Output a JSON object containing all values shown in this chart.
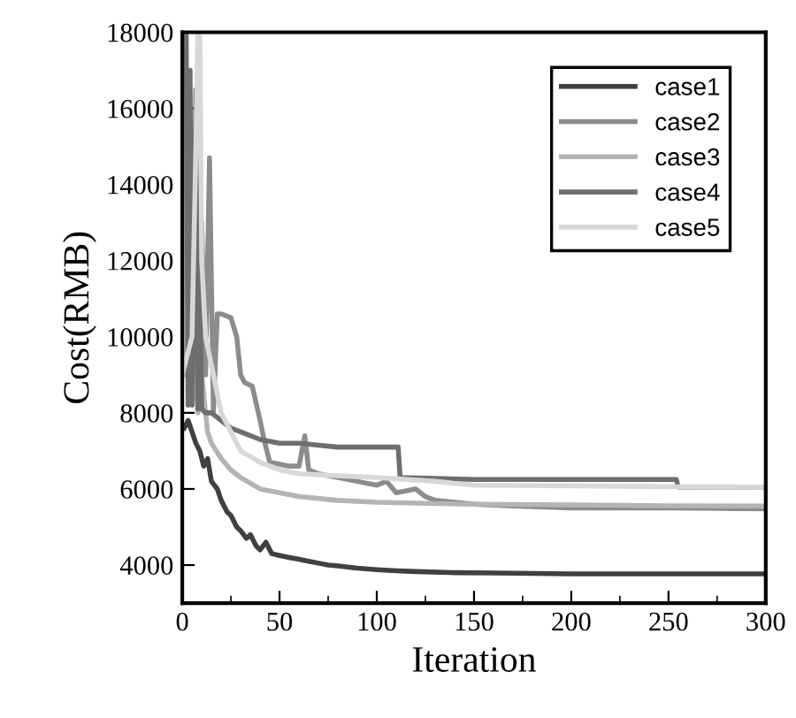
{
  "chart_data": {
    "type": "line",
    "xlabel": "Iteration",
    "ylabel": "Cost(RMB)",
    "xlim": [
      0,
      300
    ],
    "ylim": [
      3000,
      18000
    ],
    "xticks": [
      0,
      50,
      100,
      150,
      200,
      250,
      300
    ],
    "yticks": [
      4000,
      6000,
      8000,
      10000,
      12000,
      14000,
      16000,
      18000
    ],
    "legend": "top right",
    "grid": false,
    "line_style": "solid",
    "marker": "none",
    "series": [
      {
        "name": "case1",
        "color": "#404040",
        "x": [
          1,
          3,
          5,
          7,
          9,
          11,
          13,
          15,
          18,
          20,
          23,
          25,
          28,
          30,
          33,
          35,
          38,
          40,
          43,
          46,
          50,
          55,
          60,
          65,
          70,
          75,
          80,
          90,
          100,
          110,
          120,
          140,
          160,
          180,
          200,
          230,
          260,
          300
        ],
        "values": [
          7600,
          7800,
          7500,
          7200,
          7000,
          6600,
          6800,
          6200,
          6000,
          5700,
          5400,
          5300,
          5000,
          4900,
          4700,
          4800,
          4500,
          4400,
          4600,
          4300,
          4250,
          4200,
          4150,
          4100,
          4050,
          4000,
          3980,
          3920,
          3880,
          3850,
          3830,
          3800,
          3790,
          3780,
          3770,
          3770,
          3770,
          3770
        ]
      },
      {
        "name": "case2",
        "color": "#8c8c8c",
        "x": [
          0,
          2,
          4,
          6,
          8,
          10,
          12,
          14,
          16,
          18,
          20,
          25,
          28,
          30,
          32,
          36,
          40,
          42,
          45,
          50,
          55,
          60,
          63,
          65,
          70,
          80,
          90,
          100,
          105,
          110,
          120,
          125,
          130,
          140,
          150,
          170,
          200,
          250,
          300
        ],
        "values": [
          18000,
          9000,
          12000,
          8500,
          10000,
          13000,
          9000,
          14700,
          8000,
          10600,
          10600,
          10500,
          10000,
          9000,
          8800,
          8700,
          7800,
          7300,
          6700,
          6650,
          6600,
          6600,
          7400,
          6500,
          6400,
          6300,
          6200,
          6100,
          6200,
          5900,
          6000,
          5800,
          5700,
          5650,
          5600,
          5550,
          5500,
          5500,
          5480
        ]
      },
      {
        "name": "case3",
        "color": "#b4b4b4",
        "x": [
          0,
          2,
          4,
          6,
          8,
          10,
          13,
          15,
          20,
          25,
          30,
          40,
          50,
          60,
          80,
          100,
          125,
          150,
          200,
          250,
          300
        ],
        "values": [
          18000,
          9000,
          12000,
          10000,
          8000,
          9000,
          7500,
          7200,
          6800,
          6500,
          6300,
          6000,
          5900,
          5800,
          5700,
          5650,
          5620,
          5600,
          5580,
          5560,
          5550
        ]
      },
      {
        "name": "case4",
        "color": "#6e6e6e",
        "x": [
          0,
          2,
          3,
          4,
          5,
          7,
          8,
          9,
          10,
          12,
          15,
          20,
          25,
          30,
          40,
          50,
          60,
          70,
          80,
          85,
          100,
          111,
          112,
          150,
          200,
          254,
          255,
          300
        ],
        "values": [
          18000,
          18000,
          8200,
          17000,
          8200,
          16500,
          8100,
          12000,
          8100,
          8000,
          8000,
          7800,
          7600,
          7500,
          7300,
          7200,
          7200,
          7150,
          7100,
          7100,
          7100,
          7100,
          6300,
          6250,
          6250,
          6250,
          6050,
          6050
        ]
      },
      {
        "name": "case5",
        "color": "#d8d8d8",
        "x": [
          0,
          5,
          7,
          8,
          9,
          10,
          12,
          14,
          16,
          18,
          20,
          25,
          30,
          40,
          50,
          60,
          80,
          100,
          130,
          150,
          200,
          250,
          300
        ],
        "values": [
          9000,
          10000,
          15000,
          18000,
          18000,
          12000,
          10000,
          9500,
          9000,
          8500,
          8000,
          7500,
          7000,
          6700,
          6500,
          6400,
          6350,
          6300,
          6200,
          6100,
          6080,
          6060,
          6050
        ]
      }
    ]
  }
}
